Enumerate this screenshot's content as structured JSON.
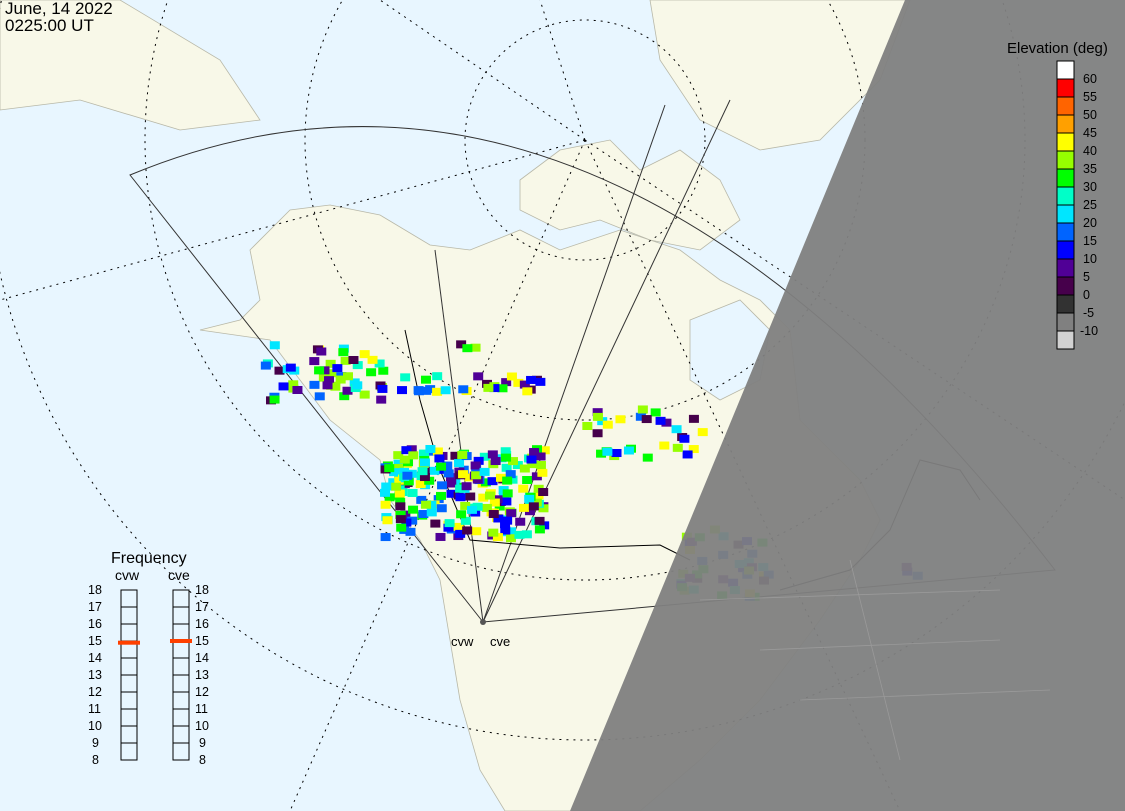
{
  "header": {
    "date": "June, 14 2022",
    "time": "0225:00 UT"
  },
  "legend": {
    "title": "Elevation (deg)",
    "levels": [
      {
        "label": "60",
        "color": "#ffffff"
      },
      {
        "label": "55",
        "color": "#ff0000"
      },
      {
        "label": "50",
        "color": "#ff6400"
      },
      {
        "label": "45",
        "color": "#ffa000"
      },
      {
        "label": "40",
        "color": "#ffff00"
      },
      {
        "label": "35",
        "color": "#96ff00"
      },
      {
        "label": "30",
        "color": "#00ff00"
      },
      {
        "label": "25",
        "color": "#00ffc8"
      },
      {
        "label": "20",
        "color": "#00e6ff"
      },
      {
        "label": "15",
        "color": "#0064ff"
      },
      {
        "label": "10",
        "color": "#0000ff"
      },
      {
        "label": "5",
        "color": "#500096"
      },
      {
        "label": "0",
        "color": "#46004b"
      },
      {
        "label": "-5",
        "color": "#323232"
      },
      {
        "label": "-10",
        "color": "#808080"
      },
      {
        "label": "",
        "color": "#d2d2d2"
      }
    ]
  },
  "frequency": {
    "title": "Frequency",
    "unit_ticks": [
      "18",
      "17",
      "16",
      "15",
      "14",
      "13",
      "12",
      "11",
      "10",
      "9",
      "8"
    ],
    "radars": [
      {
        "name": "cvw",
        "value_mhz": 14.9
      },
      {
        "name": "cve",
        "value_mhz": 15.0
      }
    ],
    "marker_color": "#ff4000"
  },
  "map": {
    "radar_labels": [
      "cvw",
      "cve"
    ],
    "colors": {
      "ocean": "#e8f6ff",
      "land": "#f8f8e8",
      "night": "#808080"
    }
  }
}
